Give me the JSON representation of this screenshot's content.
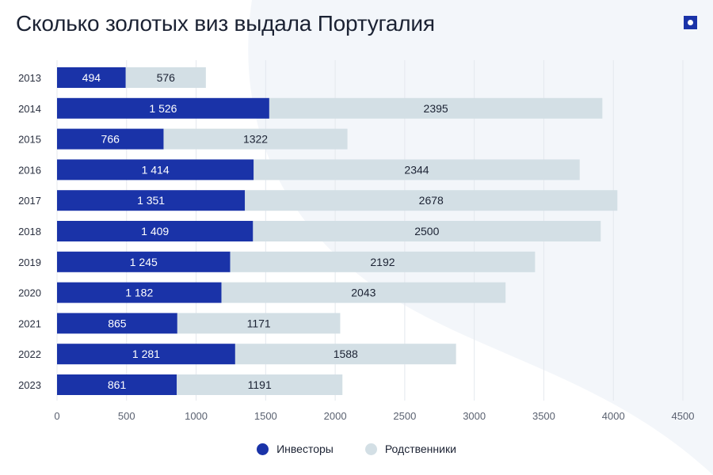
{
  "header": {
    "title": "Сколько золотых виз выдала Португалия",
    "logo_icon": "square-dot-logo-icon"
  },
  "chart_data": {
    "type": "bar",
    "orientation": "horizontal",
    "stacked": true,
    "title": "Сколько золотых виз выдала Португалия",
    "xlabel": "",
    "ylabel": "",
    "xlim": [
      0,
      4500
    ],
    "xticks": [
      0,
      500,
      1000,
      1500,
      2000,
      2500,
      3000,
      3500,
      4000,
      4500
    ],
    "grid": true,
    "legend_position": "bottom-center",
    "categories": [
      "2013",
      "2014",
      "2015",
      "2016",
      "2017",
      "2018",
      "2019",
      "2020",
      "2021",
      "2022",
      "2023"
    ],
    "series": [
      {
        "name": "Инвесторы",
        "color": "#1a33a8",
        "label_color": "#ffffff",
        "values": [
          494,
          1526,
          766,
          1414,
          1351,
          1409,
          1245,
          1182,
          865,
          1281,
          861
        ],
        "labels": [
          "494",
          "1 526",
          "766",
          "1 414",
          "1 351",
          "1 409",
          "1 245",
          "1 182",
          "865",
          "1 281",
          "861"
        ]
      },
      {
        "name": "Родственники",
        "color": "#d3dfe5",
        "label_color": "#1b2233",
        "values": [
          576,
          2395,
          1322,
          2344,
          2678,
          2500,
          2192,
          2043,
          1171,
          1588,
          1191
        ],
        "labels": [
          "576",
          "2395",
          "1322",
          "2344",
          "2678",
          "2500",
          "2192",
          "2043",
          "1171",
          "1588",
          "1191"
        ]
      }
    ]
  }
}
